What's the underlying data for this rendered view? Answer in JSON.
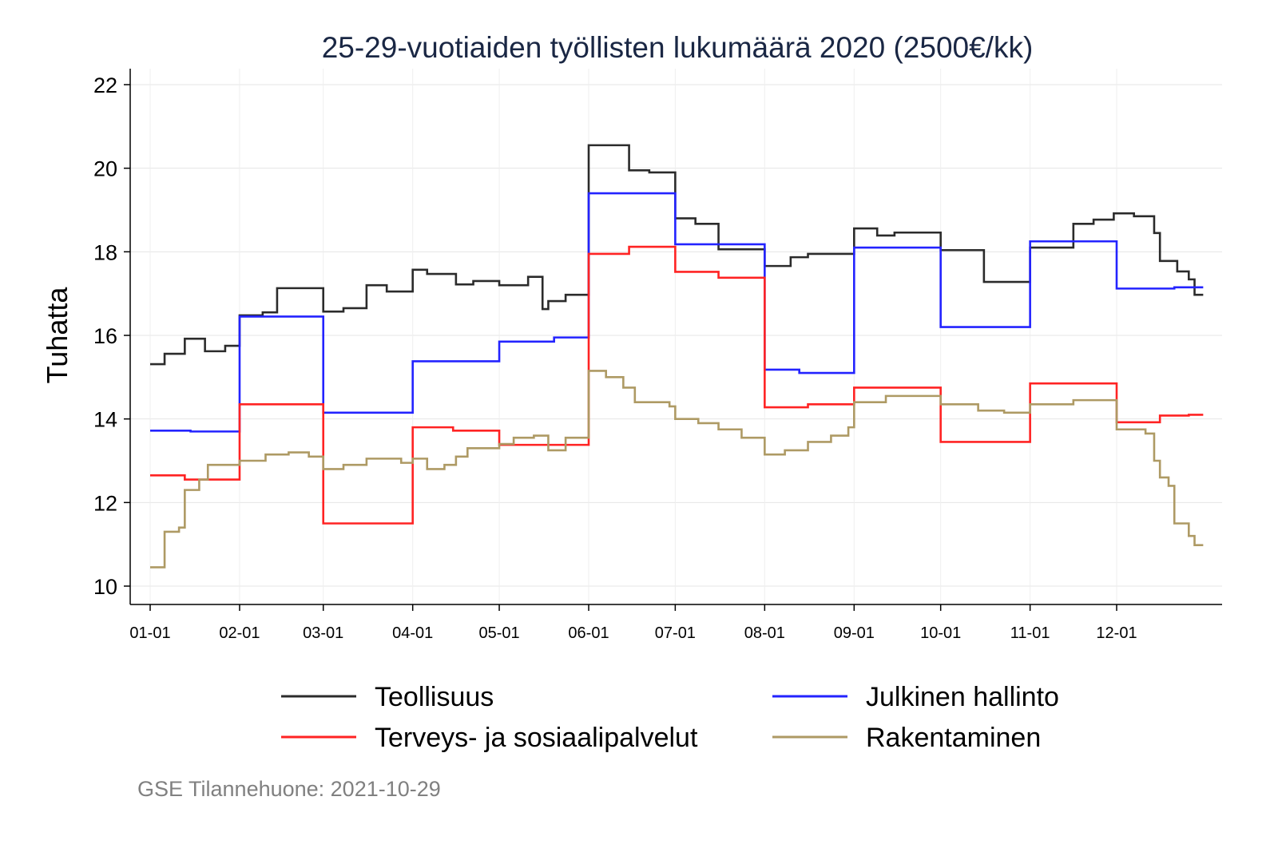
{
  "chart_data": {
    "type": "line",
    "step": true,
    "title": "25-29-vuotiaiden työllisten lukumäärä 2020 (2500€/kk)",
    "ylabel": "Tuhatta",
    "xlabel": "",
    "ylim": [
      9.6,
      22.4
    ],
    "xlim": [
      -5,
      372
    ],
    "yticks": [
      10,
      12,
      14,
      16,
      18,
      20,
      22
    ],
    "xticks": [
      {
        "day": 0,
        "label": "01-01"
      },
      {
        "day": 31,
        "label": "02-01"
      },
      {
        "day": 60,
        "label": "03-01"
      },
      {
        "day": 91,
        "label": "04-01"
      },
      {
        "day": 121,
        "label": "05-01"
      },
      {
        "day": 152,
        "label": "06-01"
      },
      {
        "day": 182,
        "label": "07-01"
      },
      {
        "day": 213,
        "label": "08-01"
      },
      {
        "day": 244,
        "label": "09-01"
      },
      {
        "day": 274,
        "label": "10-01"
      },
      {
        "day": 305,
        "label": "11-01"
      },
      {
        "day": 335,
        "label": "12-01"
      }
    ],
    "x_end_day": 365,
    "grid": true,
    "legend_position": "bottom",
    "series": [
      {
        "name": "Teollisuus",
        "color": "#2b2b2b",
        "points": [
          [
            0,
            15.31
          ],
          [
            5,
            15.56
          ],
          [
            12,
            15.92
          ],
          [
            19,
            15.62
          ],
          [
            26,
            15.75
          ],
          [
            31,
            16.48
          ],
          [
            39,
            16.55
          ],
          [
            44,
            17.13
          ],
          [
            60,
            16.57
          ],
          [
            67,
            16.65
          ],
          [
            75,
            17.2
          ],
          [
            82,
            17.05
          ],
          [
            91,
            17.57
          ],
          [
            96,
            17.47
          ],
          [
            106,
            17.22
          ],
          [
            112,
            17.3
          ],
          [
            121,
            17.2
          ],
          [
            131,
            17.4
          ],
          [
            136,
            16.63
          ],
          [
            138,
            16.82
          ],
          [
            144,
            16.97
          ],
          [
            152,
            20.55
          ],
          [
            166,
            19.95
          ],
          [
            173,
            19.9
          ],
          [
            182,
            18.8
          ],
          [
            189,
            18.67
          ],
          [
            197,
            18.06
          ],
          [
            213,
            17.66
          ],
          [
            222,
            17.87
          ],
          [
            228,
            17.95
          ],
          [
            244,
            18.56
          ],
          [
            252,
            18.39
          ],
          [
            258,
            18.46
          ],
          [
            274,
            18.04
          ],
          [
            289,
            17.28
          ],
          [
            305,
            18.1
          ],
          [
            320,
            18.67
          ],
          [
            327,
            18.77
          ],
          [
            334,
            18.92
          ],
          [
            341,
            18.85
          ],
          [
            348,
            18.45
          ],
          [
            350,
            17.78
          ],
          [
            356,
            17.53
          ],
          [
            360,
            17.34
          ],
          [
            362,
            16.97
          ]
        ]
      },
      {
        "name": "Julkinen hallinto",
        "color": "#2323ff",
        "points": [
          [
            0,
            13.72
          ],
          [
            14,
            13.7
          ],
          [
            31,
            16.45
          ],
          [
            60,
            14.15
          ],
          [
            91,
            15.38
          ],
          [
            121,
            15.85
          ],
          [
            140,
            15.95
          ],
          [
            152,
            19.4
          ],
          [
            182,
            18.18
          ],
          [
            213,
            15.18
          ],
          [
            225,
            15.1
          ],
          [
            244,
            18.1
          ],
          [
            274,
            16.2
          ],
          [
            305,
            18.25
          ],
          [
            335,
            17.12
          ],
          [
            355,
            17.15
          ]
        ]
      },
      {
        "name": "Terveys- ja sosiaalipalvelut",
        "color": "#ff2323",
        "points": [
          [
            0,
            12.65
          ],
          [
            12,
            12.55
          ],
          [
            31,
            14.35
          ],
          [
            60,
            11.5
          ],
          [
            91,
            13.8
          ],
          [
            105,
            13.72
          ],
          [
            121,
            13.38
          ],
          [
            152,
            17.95
          ],
          [
            166,
            18.12
          ],
          [
            182,
            17.52
          ],
          [
            197,
            17.38
          ],
          [
            213,
            14.28
          ],
          [
            228,
            14.35
          ],
          [
            244,
            14.75
          ],
          [
            274,
            13.45
          ],
          [
            305,
            14.85
          ],
          [
            335,
            13.92
          ],
          [
            350,
            14.08
          ],
          [
            360,
            14.1
          ]
        ]
      },
      {
        "name": "Rakentaminen",
        "color": "#ae9a64",
        "points": [
          [
            0,
            10.45
          ],
          [
            5,
            11.3
          ],
          [
            10,
            11.4
          ],
          [
            12,
            12.3
          ],
          [
            17,
            12.55
          ],
          [
            20,
            12.9
          ],
          [
            31,
            13.0
          ],
          [
            40,
            13.15
          ],
          [
            48,
            13.2
          ],
          [
            55,
            13.1
          ],
          [
            60,
            12.8
          ],
          [
            67,
            12.9
          ],
          [
            75,
            13.05
          ],
          [
            87,
            12.95
          ],
          [
            91,
            13.05
          ],
          [
            96,
            12.8
          ],
          [
            102,
            12.9
          ],
          [
            106,
            13.1
          ],
          [
            110,
            13.3
          ],
          [
            121,
            13.4
          ],
          [
            126,
            13.55
          ],
          [
            133,
            13.6
          ],
          [
            138,
            13.25
          ],
          [
            144,
            13.55
          ],
          [
            152,
            15.15
          ],
          [
            158,
            15.0
          ],
          [
            164,
            14.75
          ],
          [
            168,
            14.4
          ],
          [
            180,
            14.3
          ],
          [
            182,
            14.0
          ],
          [
            190,
            13.9
          ],
          [
            197,
            13.75
          ],
          [
            205,
            13.55
          ],
          [
            213,
            13.15
          ],
          [
            220,
            13.25
          ],
          [
            228,
            13.45
          ],
          [
            236,
            13.6
          ],
          [
            242,
            13.8
          ],
          [
            244,
            14.4
          ],
          [
            255,
            14.55
          ],
          [
            274,
            14.35
          ],
          [
            287,
            14.2
          ],
          [
            296,
            14.15
          ],
          [
            305,
            14.35
          ],
          [
            320,
            14.45
          ],
          [
            335,
            13.75
          ],
          [
            345,
            13.65
          ],
          [
            348,
            13.0
          ],
          [
            350,
            12.6
          ],
          [
            353,
            12.4
          ],
          [
            355,
            11.5
          ],
          [
            360,
            11.2
          ],
          [
            362,
            10.98
          ]
        ]
      }
    ],
    "source": "GSE Tilannehuone: 2021-10-29"
  }
}
